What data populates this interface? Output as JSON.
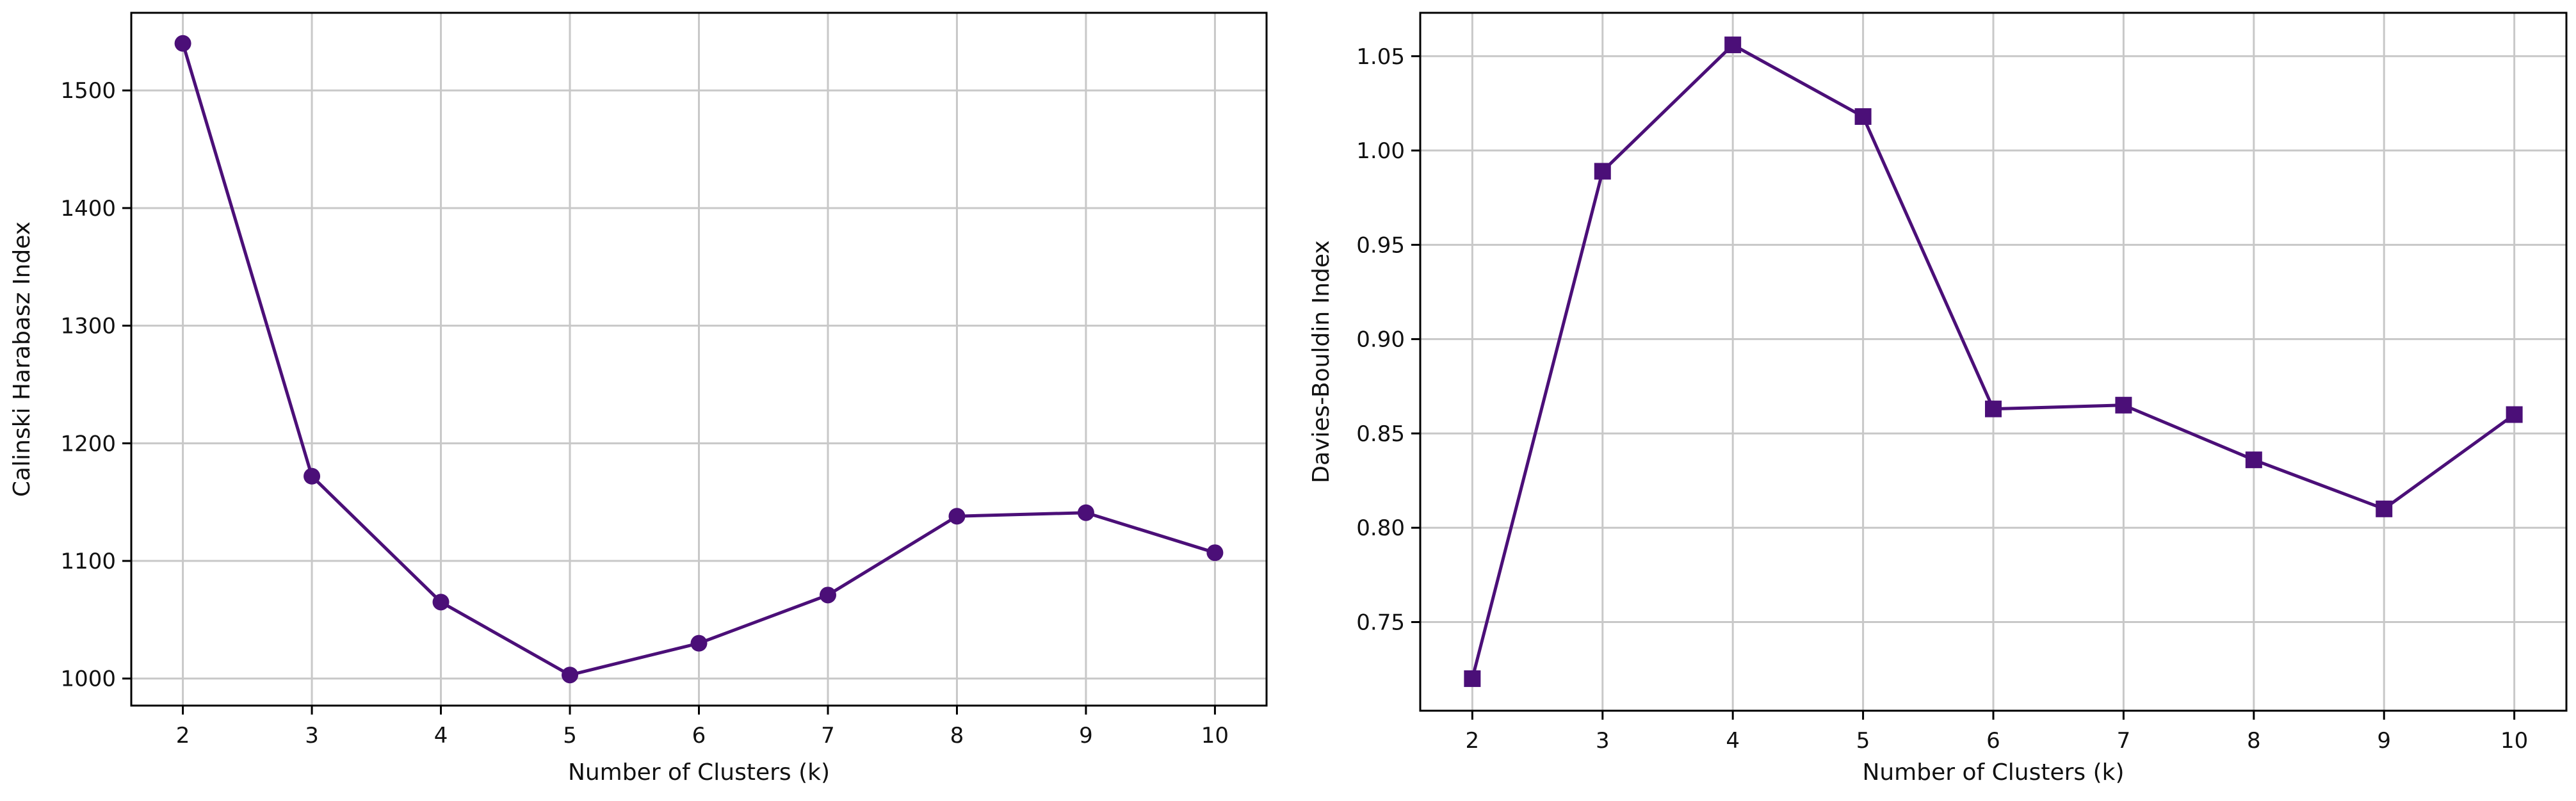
{
  "chart_data": [
    {
      "type": "line",
      "title": "",
      "xlabel": "Number of Clusters (k)",
      "ylabel": "Calinski Harabasz Index",
      "x": [
        2,
        3,
        4,
        5,
        6,
        7,
        8,
        9,
        10
      ],
      "series": [
        {
          "values": [
            1540,
            1172,
            1065,
            1003,
            1030,
            1071,
            1138,
            1141,
            1107
          ]
        }
      ],
      "marker": "circle",
      "color": "#4b0f78",
      "xticks": [
        "2",
        "3",
        "4",
        "5",
        "6",
        "7",
        "8",
        "9",
        "10"
      ],
      "yticks": [
        1000,
        1100,
        1200,
        1300,
        1400,
        1500
      ],
      "ytick_labels": [
        "1000",
        "1100",
        "1200",
        "1300",
        "1400",
        "1500"
      ],
      "xlim": [
        1.6,
        10.4
      ],
      "ylim": [
        977,
        1566
      ],
      "grid": true,
      "legend": "none"
    },
    {
      "type": "line",
      "title": "",
      "xlabel": "Number of Clusters (k)",
      "ylabel": "Davies-Bouldin Index",
      "x": [
        2,
        3,
        4,
        5,
        6,
        7,
        8,
        9,
        10
      ],
      "series": [
        {
          "values": [
            0.72,
            0.989,
            1.056,
            1.018,
            0.863,
            0.865,
            0.836,
            0.81,
            0.86
          ]
        }
      ],
      "marker": "square",
      "color": "#4b0f78",
      "xticks": [
        "2",
        "3",
        "4",
        "5",
        "6",
        "7",
        "8",
        "9",
        "10"
      ],
      "yticks": [
        0.75,
        0.8,
        0.85,
        0.9,
        0.95,
        1.0,
        1.05
      ],
      "ytick_labels": [
        "0.75",
        "0.80",
        "0.85",
        "0.90",
        "0.95",
        "1.00",
        "1.05"
      ],
      "xlim": [
        1.6,
        10.4
      ],
      "ylim": [
        0.703,
        1.073
      ],
      "grid": true,
      "legend": "none"
    }
  ]
}
